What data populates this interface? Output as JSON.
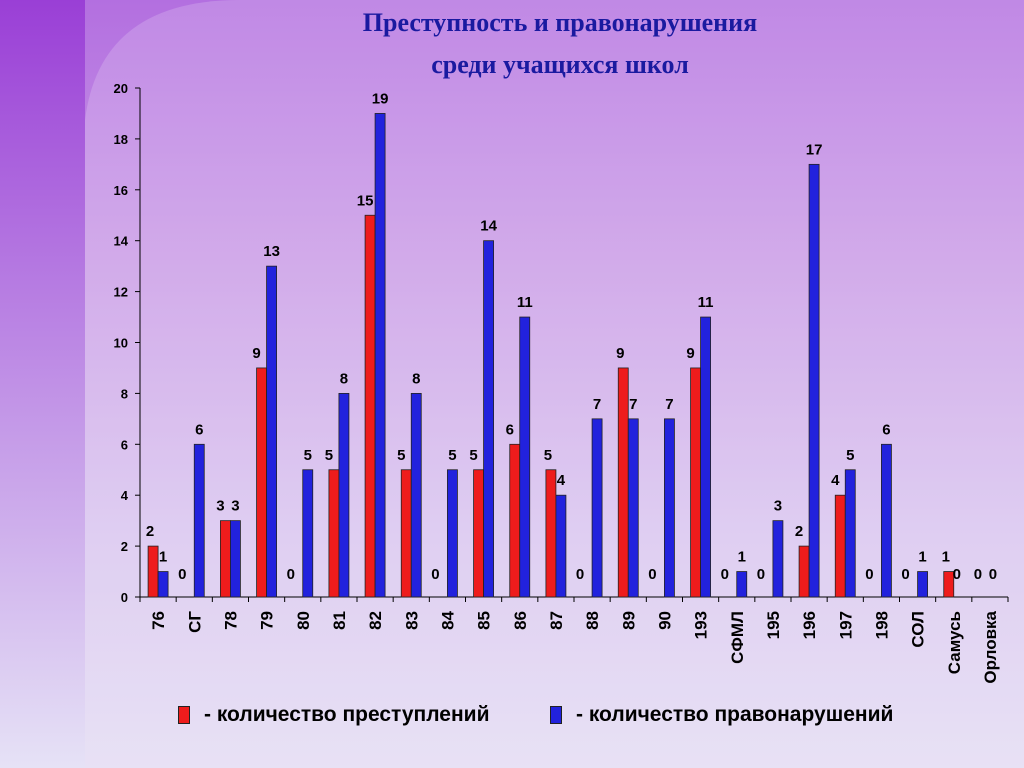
{
  "colors": {
    "crimes": "#ee1c1c",
    "offenses": "#2222dd"
  },
  "title_line1": "Преступность и правонарушения",
  "title_line2": "среди учащихся школ",
  "legend": {
    "crimes": "- количество преступлений",
    "offenses": "- количество правонарушений"
  },
  "chart_data": {
    "type": "bar",
    "title": "Преступность и правонарушения среди учащихся школ",
    "categories": [
      "76",
      "СГ",
      "78",
      "79",
      "80",
      "81",
      "82",
      "83",
      "84",
      "85",
      "86",
      "87",
      "88",
      "89",
      "90",
      "193",
      "СФМЛ",
      "195",
      "196",
      "197",
      "198",
      "СОЛ",
      "Самусь",
      "Орловка"
    ],
    "series": [
      {
        "name": "- количество преступлений",
        "values": [
          2,
          0,
          3,
          9,
          0,
          5,
          15,
          5,
          0,
          5,
          6,
          5,
          0,
          9,
          0,
          9,
          0,
          0,
          2,
          4,
          0,
          0,
          1,
          0
        ]
      },
      {
        "name": "- количество правонарушений",
        "values": [
          1,
          6,
          3,
          13,
          5,
          8,
          19,
          8,
          5,
          14,
          11,
          4,
          7,
          7,
          7,
          11,
          1,
          3,
          17,
          5,
          6,
          1,
          0,
          0
        ]
      }
    ],
    "ylim": [
      0,
      20
    ],
    "yticks": [
      0,
      2,
      4,
      6,
      8,
      10,
      12,
      14,
      16,
      18,
      20
    ],
    "xlabel": "",
    "ylabel": "",
    "grid": false,
    "legend_position": "bottom"
  }
}
